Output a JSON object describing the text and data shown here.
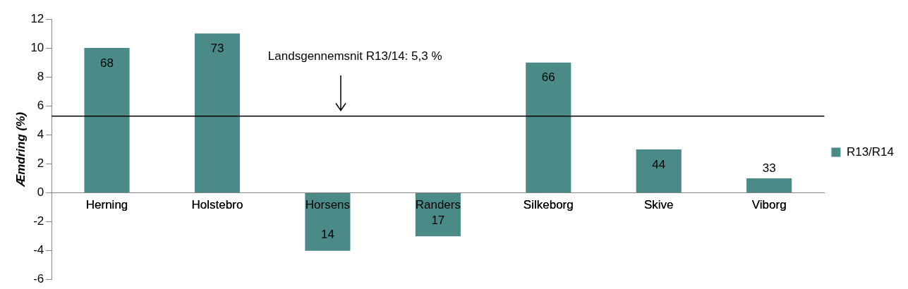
{
  "chart_data": {
    "type": "bar",
    "categories": [
      "Herning",
      "Holstebro",
      "Horsens",
      "Randers",
      "Silkeborg",
      "Skive",
      "Viborg"
    ],
    "series": [
      {
        "name": "R13/R14",
        "color": "#4a8a87",
        "values": [
          10,
          11,
          -4,
          -3,
          9,
          3,
          1
        ]
      }
    ],
    "annotations": [
      "68",
      "73",
      "14",
      "17",
      "66",
      "44",
      "33"
    ],
    "ylabel": "Æmdring (%)",
    "ylim": [
      -6,
      12
    ],
    "yticks": [
      -6,
      -4,
      -2,
      0,
      2,
      4,
      6,
      8,
      10,
      12
    ],
    "ref_lines": [
      {
        "axis": "y",
        "value": 5.3,
        "label": "Landsgennemsnit R13/14: 5,3 %",
        "color": "#000000"
      }
    ],
    "grid": false,
    "legend": "right"
  }
}
